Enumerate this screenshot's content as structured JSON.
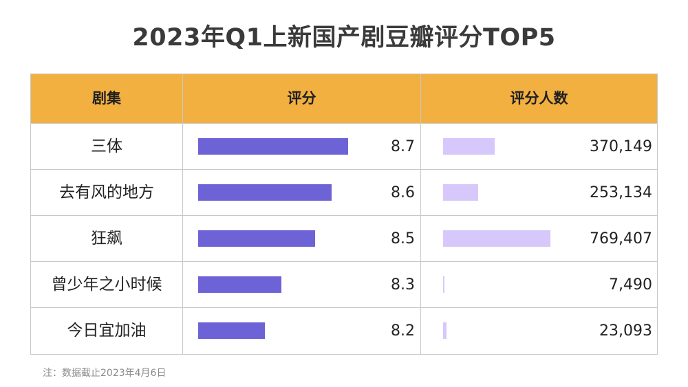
{
  "title": "2023年Q1上新国产剧豆瓣评分TOP5",
  "note": "注：数据截止2023年4月6日",
  "colors": {
    "header_bg": "#f2b041",
    "score_bar": "#6e63d6",
    "count_bar": "#d6c8fb",
    "border": "#c8c8c8"
  },
  "chart_data": {
    "type": "table",
    "columns": [
      "剧集",
      "评分",
      "评分人数"
    ],
    "rows": [
      {
        "name": "三体",
        "score": 8.7,
        "score_label": "8.7",
        "count": 370149,
        "count_label": "370,149"
      },
      {
        "name": "去有风的地方",
        "score": 8.6,
        "score_label": "8.6",
        "count": 253134,
        "count_label": "253,134"
      },
      {
        "name": "狂飙",
        "score": 8.5,
        "score_label": "8.5",
        "count": 769407,
        "count_label": "769,407"
      },
      {
        "name": "曾少年之小时候",
        "score": 8.3,
        "score_label": "8.3",
        "count": 7490,
        "count_label": "7,490"
      },
      {
        "name": "今日宜加油",
        "score": 8.2,
        "score_label": "8.2",
        "count": 23093,
        "count_label": "23,093"
      }
    ]
  }
}
